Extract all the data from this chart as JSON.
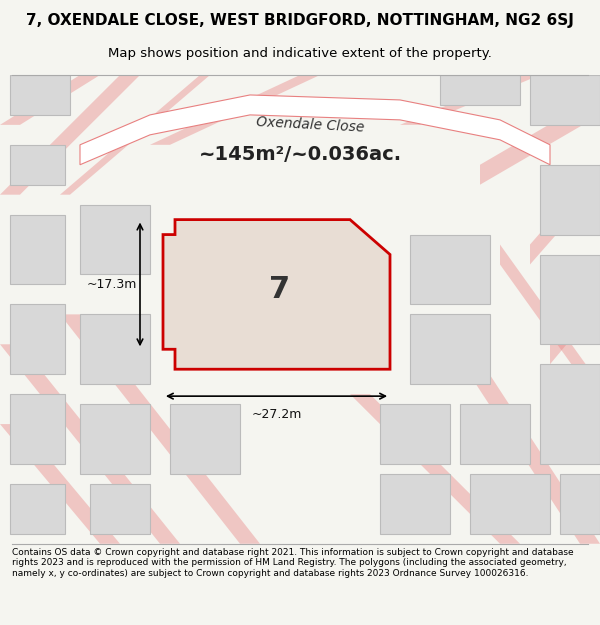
{
  "title_line1": "7, OXENDALE CLOSE, WEST BRIDGFORD, NOTTINGHAM, NG2 6SJ",
  "title_line2": "Map shows position and indicative extent of the property.",
  "footer_text": "Contains OS data © Crown copyright and database right 2021. This information is subject to Crown copyright and database rights 2023 and is reproduced with the permission of HM Land Registry. The polygons (including the associated geometry, namely x, y co-ordinates) are subject to Crown copyright and database rights 2023 Ordnance Survey 100026316.",
  "area_label": "~145m²/~0.036ac.",
  "property_number": "7",
  "dim_width": "~27.2m",
  "dim_height": "~17.3m",
  "bg_color": "#f0ede8",
  "map_bg": "#f0ede8",
  "road_color": "#ffffff",
  "building_color": "#d8d8d8",
  "property_fill": "#e8e0d8",
  "property_outline": "#cc0000",
  "road_line_color": "#e88080",
  "street_label": "Oxendale Close",
  "fig_width": 6.0,
  "fig_height": 6.25
}
